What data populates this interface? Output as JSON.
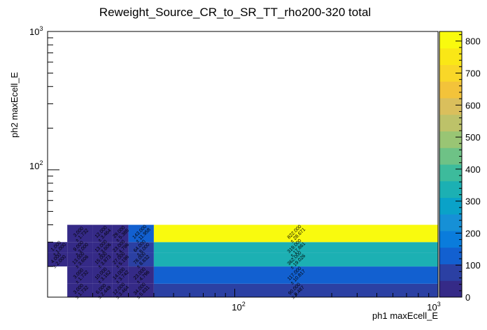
{
  "chart_data": {
    "type": "heatmap",
    "title": "Reweight_Source_CR_to_SR_TT_rho200-320 total",
    "xlabel": "ph1 maxEcell_E",
    "ylabel": "ph2 maxEcell_E",
    "xscale": "log",
    "yscale": "log",
    "xlim": [
      12,
      1000
    ],
    "ylim": [
      12,
      1000
    ],
    "x_ticklabels": [
      "10^2",
      "10^3"
    ],
    "y_ticklabels": [
      "10^2",
      "10^3"
    ],
    "zlim": [
      0,
      830
    ],
    "z_ticks": [
      0,
      100,
      200,
      300,
      400,
      500,
      600,
      700,
      800
    ],
    "x_edges": [
      12,
      15,
      20,
      25,
      30,
      40,
      1000
    ],
    "y_edges": [
      12,
      15,
      20,
      25,
      30,
      40,
      1000
    ],
    "cells": [
      {
        "i": 0,
        "j": 0,
        "value": null,
        "label": ""
      },
      {
        "i": 1,
        "j": 0,
        "value": 3,
        "label": "3.000 ± 1.732"
      },
      {
        "i": 2,
        "j": 0,
        "value": 6,
        "label": "6.000 ± 2.449"
      },
      {
        "i": 3,
        "j": 0,
        "value": 12,
        "label": "12.000 ± 3.464"
      },
      {
        "i": 4,
        "j": 0,
        "value": 34,
        "label": "34.000 ± 5.831"
      },
      {
        "i": 5,
        "j": 0,
        "value": 90,
        "label": "90.000 ± 9.487"
      },
      {
        "i": 0,
        "j": 1,
        "value": null,
        "label": ""
      },
      {
        "i": 1,
        "j": 1,
        "value": 3,
        "label": "3.000 ± 1.732"
      },
      {
        "i": 2,
        "j": 1,
        "value": 10,
        "label": "10.000 ± 3.162"
      },
      {
        "i": 3,
        "j": 1,
        "value": 14,
        "label": "14.000 ± 3.742"
      },
      {
        "i": 4,
        "j": 1,
        "value": 23,
        "label": "23.000 ± 4.796"
      },
      {
        "i": 5,
        "j": 1,
        "value": 117,
        "label": "117.000 ± 10.817"
      },
      {
        "i": 0,
        "j": 2,
        "value": 4,
        "label": "4.000 ± 2.000"
      },
      {
        "i": 1,
        "j": 2,
        "value": 13,
        "label": "13.000 ± 3.606"
      },
      {
        "i": 2,
        "j": 2,
        "value": 15,
        "label": "15.000 ± 3.873"
      },
      {
        "i": 3,
        "j": 2,
        "value": 27,
        "label": "27.000 ± 5.196"
      },
      {
        "i": 4,
        "j": 2,
        "value": 78,
        "label": "78.000 ± 8.832"
      },
      {
        "i": 5,
        "j": 2,
        "value": 362,
        "label": "362.000 ± 19.026"
      },
      {
        "i": 0,
        "j": 3,
        "value": 1,
        "label": "1.000 ± 1.000"
      },
      {
        "i": 1,
        "j": 3,
        "value": 9,
        "label": "9.000 ± 3.000"
      },
      {
        "i": 2,
        "j": 3,
        "value": 13,
        "label": "13.000 ± 3.606"
      },
      {
        "i": 3,
        "j": 3,
        "value": 23,
        "label": "23.000 ± 4.796"
      },
      {
        "i": 4,
        "j": 3,
        "value": 64,
        "label": "64.000 ± 8.000"
      },
      {
        "i": 5,
        "j": 3,
        "value": 319,
        "label": "319.000 ± 17.861"
      },
      {
        "i": 0,
        "j": 4,
        "value": null,
        "label": ""
      },
      {
        "i": 1,
        "j": 4,
        "value": 3,
        "label": "3.000 ± 1.732"
      },
      {
        "i": 2,
        "j": 4,
        "value": 12,
        "label": "12.000 ± 3.464"
      },
      {
        "i": 3,
        "j": 4,
        "value": 29,
        "label": "29.000 ± 5.385"
      },
      {
        "i": 4,
        "j": 4,
        "value": 143,
        "label": "143.000 ± 11.958"
      },
      {
        "i": 5,
        "j": 4,
        "value": 822,
        "label": "822.000 ± 28.671"
      }
    ],
    "palette": "ROOT kBird",
    "colors": [
      "#352a87",
      "#2b40a3",
      "#1260d0",
      "#0a7cdc",
      "#1690d6",
      "#0aa2c8",
      "#1cb0b3",
      "#3dbb9c",
      "#6ec286",
      "#99c574",
      "#bdc269",
      "#dabf5c",
      "#f3c33a",
      "#f9d728",
      "#fae716",
      "#f9fa0e"
    ]
  }
}
